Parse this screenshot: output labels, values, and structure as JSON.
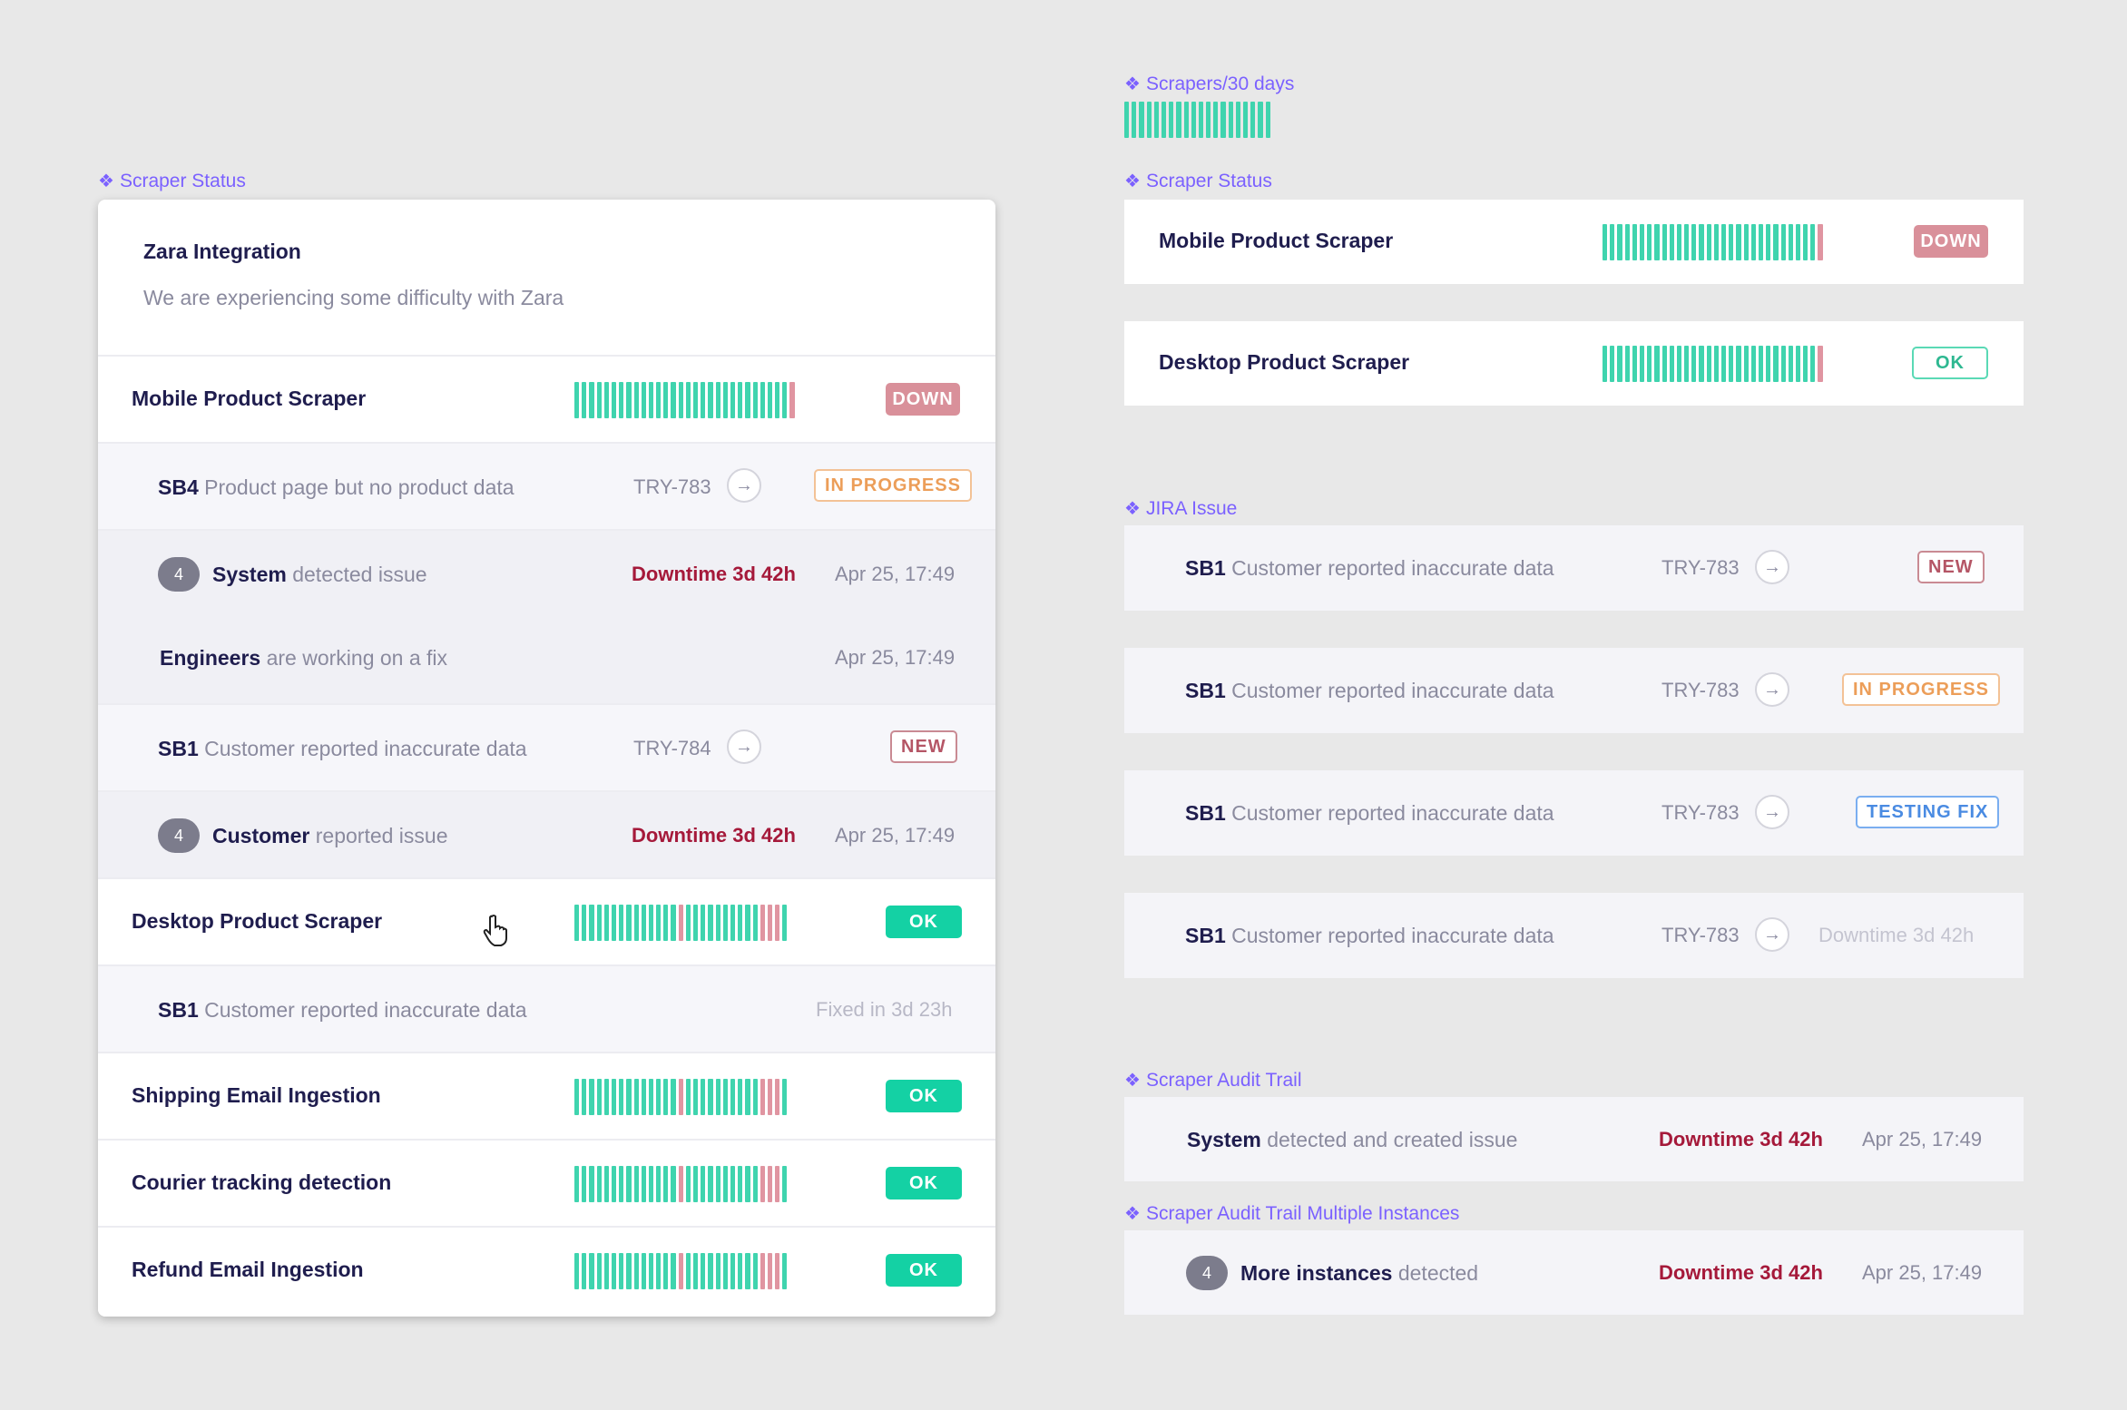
{
  "labels": {
    "scrapers30": "Scrapers/30 days",
    "scraper_status_left": "Scraper Status",
    "scraper_status_right": "Scraper Status",
    "jira_issue": "JIRA Issue",
    "audit_trail": "Scraper Audit Trail",
    "audit_multi": "Scraper Audit Trail Multiple Instances",
    "diamond": "❖"
  },
  "left_card": {
    "header": {
      "title": "Zara Integration",
      "message": "We are experiencing some difficulty with Zara"
    },
    "mobile": {
      "name": "Mobile Product Scraper",
      "status": "DOWN"
    },
    "sb4": {
      "code": "SB4",
      "text": "Product page but no product data",
      "ticket": "TRY-783",
      "status": "IN PROGRESS"
    },
    "system_issue": {
      "count": "4",
      "actor": "System",
      "text": "detected issue",
      "downtime": "Downtime 3d 42h",
      "time": "Apr 25, 17:49"
    },
    "engineers": {
      "actor": "Engineers",
      "text": "are working on a fix",
      "time": "Apr 25, 17:49"
    },
    "sb1": {
      "code": "SB1",
      "text": "Customer reported inaccurate data",
      "ticket": "TRY-784",
      "status": "NEW"
    },
    "customer_issue": {
      "count": "4",
      "actor": "Customer",
      "text": "reported issue",
      "downtime": "Downtime 3d 42h",
      "time": "Apr 25, 17:49"
    },
    "desktop": {
      "name": "Desktop Product Scraper",
      "status": "OK"
    },
    "desktop_sb1": {
      "code": "SB1",
      "text": "Customer reported inaccurate data",
      "fixed": "Fixed in 3d 23h"
    },
    "shipping": {
      "name": "Shipping Email Ingestion",
      "status": "OK"
    },
    "courier": {
      "name": "Courier tracking detection",
      "status": "OK"
    },
    "refund": {
      "name": "Refund Email Ingestion",
      "status": "OK"
    }
  },
  "right": {
    "status_mobile": {
      "name": "Mobile Product Scraper",
      "status": "DOWN"
    },
    "status_desktop": {
      "name": "Desktop Product Scraper",
      "status": "OK"
    },
    "jira": [
      {
        "code": "SB1",
        "text": "Customer reported inaccurate data",
        "ticket": "TRY-783",
        "status": "NEW"
      },
      {
        "code": "SB1",
        "text": "Customer reported inaccurate data",
        "ticket": "TRY-783",
        "status": "IN PROGRESS"
      },
      {
        "code": "SB1",
        "text": "Customer reported inaccurate data",
        "ticket": "TRY-783",
        "status": "TESTING FIX"
      },
      {
        "code": "SB1",
        "text": "Customer reported inaccurate data",
        "ticket": "TRY-783",
        "status": "Downtime 3d 42h"
      }
    ],
    "audit": {
      "actor": "System",
      "text": "detected and created issue",
      "downtime": "Downtime 3d 42h",
      "time": "Apr 25, 17:49"
    },
    "audit_multi": {
      "count": "4",
      "actor": "More instances",
      "text": "detected",
      "downtime": "Downtime 3d 42h",
      "time": "Apr 25, 17:49"
    }
  },
  "colors": {
    "ok": "#14d1a4",
    "up_bar": "#3fd4ae",
    "down_bar": "#e095a1",
    "down_badge": "#d9909a",
    "accent_label": "#7b61ff",
    "downtime": "#a5193a"
  },
  "uptime_bars": {
    "all_up_then_down": "uuuuuuuuuuuuuuuuuuuuuuuuuuuuuuuuuuuuuuuuuuuuuuuuuuuuuuuuuuuuuuuuuuuuuuuuuuuuuuuuuuuuurrr",
    "mixed": "uuuuuuuuuuuuuuuuuuuuuuuuuuuuuuuuuuuuuuuurrruuuuuuuuuuuuuuuuuuuuuuuuuuuuuuuurrrrrrruuu",
    "legend_30": "uuuuuuuuuuuuuuuuuuuuuuuuuuuuuuuuuuuuuuuuuuuuuuuuuuuuuuuuuuuggggggggggggggggggu"
  }
}
